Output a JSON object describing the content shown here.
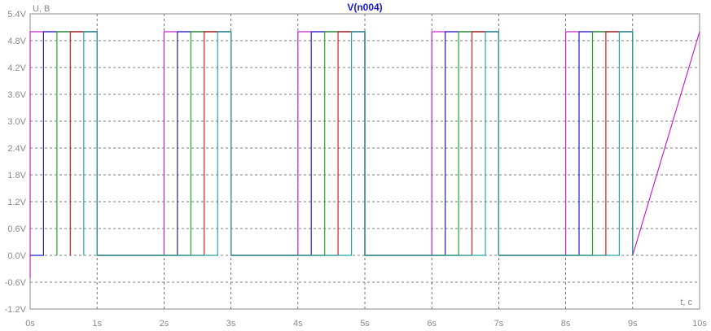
{
  "chart_data": {
    "type": "line",
    "title": "V(n004)",
    "xlabel": "t, c",
    "ylabel": "U, B",
    "xlim": [
      0,
      10
    ],
    "ylim": [
      -1.2,
      5.4
    ],
    "x_ticks": [
      "0s",
      "1s",
      "2s",
      "3s",
      "4s",
      "5s",
      "6s",
      "7s",
      "8s",
      "9s",
      "10s"
    ],
    "y_ticks": [
      "-1.2V",
      "-0.6V",
      "0.0V",
      "0.6V",
      "1.2V",
      "1.8V",
      "2.4V",
      "3.0V",
      "3.6V",
      "4.2V",
      "4.8V",
      "5.4V"
    ],
    "grid": true,
    "series": [
      {
        "color": "#cc22cc",
        "x": [
          0,
          0,
          1,
          1,
          2,
          2,
          3,
          3,
          4,
          4,
          5,
          5,
          6,
          6,
          7,
          7,
          8,
          8,
          9,
          9,
          10
        ],
        "y": [
          -0.5,
          5,
          5,
          0,
          0,
          5,
          5,
          0,
          0,
          5,
          5,
          0,
          0,
          5,
          5,
          0,
          0,
          5,
          5,
          0,
          5
        ]
      },
      {
        "color": "#2222cc",
        "x": [
          0,
          0.2,
          0.2,
          1,
          1,
          2,
          2.2,
          2.2,
          3,
          3,
          4,
          4.2,
          4.2,
          5,
          5,
          6,
          6.2,
          6.2,
          7,
          7,
          8,
          8.2,
          8.2,
          9,
          9
        ],
        "y": [
          0,
          0,
          5,
          5,
          0,
          0,
          0,
          5,
          5,
          0,
          0,
          0,
          5,
          5,
          0,
          0,
          0,
          5,
          5,
          0,
          0,
          0,
          5,
          5,
          0
        ]
      },
      {
        "color": "#22aa22",
        "x": [
          0.4,
          0.4,
          1,
          1,
          2.4,
          2.4,
          3,
          3,
          4.4,
          4.4,
          5,
          5,
          6.4,
          6.4,
          7,
          7,
          8.4,
          8.4,
          9,
          9
        ],
        "y": [
          0,
          5,
          5,
          0,
          0,
          5,
          5,
          0,
          0,
          5,
          5,
          0,
          0,
          5,
          5,
          0,
          0,
          5,
          5,
          0
        ]
      },
      {
        "color": "#cc2222",
        "x": [
          0.6,
          0.6,
          1,
          1,
          2.6,
          2.6,
          3,
          3,
          4.6,
          4.6,
          5,
          5,
          6.6,
          6.6,
          7,
          7,
          8.6,
          8.6,
          9,
          9
        ],
        "y": [
          0,
          5,
          5,
          0,
          0,
          5,
          5,
          0,
          0,
          5,
          5,
          0,
          0,
          5,
          5,
          0,
          0,
          5,
          5,
          0
        ]
      },
      {
        "color": "#22aaaa",
        "x": [
          0.8,
          0.8,
          1,
          1,
          2.8,
          2.8,
          3,
          3,
          4.8,
          4.8,
          5,
          5,
          6.8,
          6.8,
          7,
          7,
          8.8,
          8.8,
          9,
          9
        ],
        "y": [
          0,
          5,
          5,
          0,
          0,
          5,
          5,
          0,
          0,
          5,
          5,
          0,
          0,
          5,
          5,
          0,
          0,
          5,
          5,
          0
        ]
      }
    ]
  }
}
